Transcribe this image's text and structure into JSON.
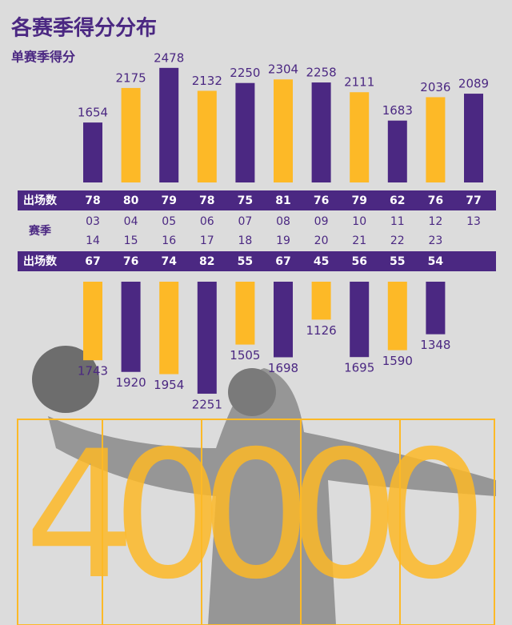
{
  "title": "各赛季得分分布",
  "subtitle": "单赛季得分",
  "season_label": "赛季",
  "games_label": "出场数",
  "big_number": "40000",
  "chart_data": [
    {
      "type": "bar",
      "categories": [
        "03",
        "04",
        "05",
        "06",
        "07",
        "08",
        "09",
        "10",
        "11",
        "12",
        "13"
      ],
      "values": [
        1654,
        2175,
        2478,
        2132,
        2250,
        2304,
        2258,
        2111,
        1683,
        2036,
        2089
      ],
      "games": [
        78,
        80,
        79,
        78,
        75,
        81,
        76,
        79,
        62,
        76,
        77
      ],
      "colors": [
        "#4b2882",
        "#fdb927",
        "#4b2882",
        "#fdb927",
        "#4b2882",
        "#fdb927",
        "#4b2882",
        "#fdb927",
        "#4b2882",
        "#fdb927",
        "#4b2882"
      ],
      "ylim": [
        750,
        2500
      ]
    },
    {
      "type": "bar",
      "categories": [
        "14",
        "15",
        "16",
        "17",
        "18",
        "19",
        "20",
        "21",
        "22",
        "23"
      ],
      "values": [
        1743,
        1920,
        1954,
        2251,
        1505,
        1698,
        1126,
        1695,
        1590,
        1348
      ],
      "games": [
        67,
        76,
        74,
        82,
        55,
        67,
        45,
        56,
        55,
        54
      ],
      "colors": [
        "#fdb927",
        "#4b2882",
        "#fdb927",
        "#4b2882",
        "#fdb927",
        "#4b2882",
        "#fdb927",
        "#4b2882",
        "#fdb927",
        "#4b2882"
      ],
      "ylim": [
        550,
        2300
      ]
    }
  ]
}
